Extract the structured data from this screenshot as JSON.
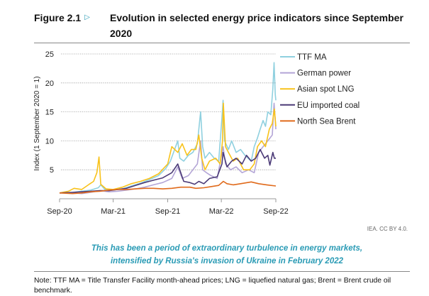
{
  "figure": {
    "label": "Figure 2.1",
    "icon": "triangle-right-icon",
    "title": "Evolution in selected energy price indicators since September 2020",
    "source": "IEA. CC BY 4.0.",
    "caption_line1": "This has been a period of extraordinary turbulence in energy markets,",
    "caption_line2": "intensified by Russia's invasion of Ukraine in February 2022",
    "note": "Note:  TTF MA = Title Transfer Facility month-ahead prices; LNG = liquefied natural gas; Brent = Brent crude oil benchmark.",
    "accent_color": "#2a9bb5"
  },
  "chart_data": {
    "type": "line",
    "title": "Evolution in selected energy price indicators since September 2020",
    "ylabel": "Index (1 September 2020 = 1)",
    "xlabel": "",
    "ylim": [
      0,
      25
    ],
    "yticks": [
      5,
      10,
      15,
      20,
      25
    ],
    "xlim": [
      "2020-09-01",
      "2022-09-01"
    ],
    "xticks": [
      {
        "date": "2020-09-01",
        "label": "Sep-20"
      },
      {
        "date": "2021-03-01",
        "label": "Mar-21"
      },
      {
        "date": "2021-09-01",
        "label": "Sep-21"
      },
      {
        "date": "2022-03-01",
        "label": "Mar-22"
      },
      {
        "date": "2022-09-01",
        "label": "Sep-22"
      }
    ],
    "grid": "horizontal dotted",
    "legend_position": "right",
    "series": [
      {
        "name": "TTF MA",
        "color": "#8fd0df",
        "points": [
          [
            "2020-09-01",
            1
          ],
          [
            "2020-10-15",
            1.1
          ],
          [
            "2020-11-15",
            1.3
          ],
          [
            "2020-12-15",
            1.5
          ],
          [
            "2021-01-10",
            1.9
          ],
          [
            "2021-01-18",
            2.4
          ],
          [
            "2021-02-01",
            1.6
          ],
          [
            "2021-03-01",
            1.5
          ],
          [
            "2021-04-01",
            1.7
          ],
          [
            "2021-05-01",
            2.2
          ],
          [
            "2021-06-01",
            2.7
          ],
          [
            "2021-07-01",
            3.3
          ],
          [
            "2021-08-01",
            4
          ],
          [
            "2021-08-25",
            5.2
          ],
          [
            "2021-09-10",
            6.5
          ],
          [
            "2021-10-05",
            10
          ],
          [
            "2021-10-12",
            7
          ],
          [
            "2021-10-25",
            6.5
          ],
          [
            "2021-11-10",
            7.5
          ],
          [
            "2021-11-25",
            8
          ],
          [
            "2021-12-10",
            9.5
          ],
          [
            "2021-12-21",
            15
          ],
          [
            "2021-12-28",
            9
          ],
          [
            "2022-01-05",
            7
          ],
          [
            "2022-01-20",
            8
          ],
          [
            "2022-02-05",
            7
          ],
          [
            "2022-02-20",
            6.5
          ],
          [
            "2022-03-03",
            14
          ],
          [
            "2022-03-07",
            17
          ],
          [
            "2022-03-12",
            10
          ],
          [
            "2022-03-25",
            8.5
          ],
          [
            "2022-04-05",
            10
          ],
          [
            "2022-04-20",
            8
          ],
          [
            "2022-05-05",
            8.5
          ],
          [
            "2022-05-20",
            7.5
          ],
          [
            "2022-06-10",
            6.5
          ],
          [
            "2022-06-20",
            9
          ],
          [
            "2022-07-01",
            10.5
          ],
          [
            "2022-07-10",
            12
          ],
          [
            "2022-07-20",
            13.5
          ],
          [
            "2022-07-28",
            12.5
          ],
          [
            "2022-08-05",
            15
          ],
          [
            "2022-08-15",
            14.5
          ],
          [
            "2022-08-22",
            19
          ],
          [
            "2022-08-26",
            23.5
          ],
          [
            "2022-08-30",
            18
          ],
          [
            "2022-09-01",
            17
          ]
        ]
      },
      {
        "name": "German power",
        "color": "#b3a5d6",
        "points": [
          [
            "2020-09-01",
            1
          ],
          [
            "2020-10-15",
            1
          ],
          [
            "2020-11-15",
            0.9
          ],
          [
            "2020-12-15",
            1.1
          ],
          [
            "2021-01-15",
            1.4
          ],
          [
            "2021-02-15",
            1.2
          ],
          [
            "2021-03-15",
            1.3
          ],
          [
            "2021-04-15",
            1.5
          ],
          [
            "2021-05-15",
            1.7
          ],
          [
            "2021-06-15",
            2
          ],
          [
            "2021-07-15",
            2.4
          ],
          [
            "2021-08-15",
            2.8
          ],
          [
            "2021-09-15",
            3.5
          ],
          [
            "2021-10-05",
            5.5
          ],
          [
            "2021-10-20",
            3.5
          ],
          [
            "2021-11-10",
            4
          ],
          [
            "2021-11-25",
            5
          ],
          [
            "2021-12-10",
            6
          ],
          [
            "2021-12-21",
            10
          ],
          [
            "2021-12-28",
            5
          ],
          [
            "2022-01-10",
            4.5
          ],
          [
            "2022-01-25",
            4
          ],
          [
            "2022-02-15",
            3.5
          ],
          [
            "2022-03-07",
            9
          ],
          [
            "2022-03-15",
            6
          ],
          [
            "2022-04-01",
            5
          ],
          [
            "2022-04-20",
            5.5
          ],
          [
            "2022-05-10",
            4.5
          ],
          [
            "2022-06-01",
            5
          ],
          [
            "2022-06-20",
            4.5
          ],
          [
            "2022-07-05",
            8
          ],
          [
            "2022-07-20",
            9
          ],
          [
            "2022-08-05",
            10
          ],
          [
            "2022-08-20",
            11
          ],
          [
            "2022-08-26",
            16.5
          ],
          [
            "2022-09-01",
            12
          ]
        ]
      },
      {
        "name": "Asian spot LNG",
        "color": "#f8c21a",
        "points": [
          [
            "2020-09-01",
            1
          ],
          [
            "2020-10-01",
            1.3
          ],
          [
            "2020-10-20",
            1.8
          ],
          [
            "2020-11-15",
            1.6
          ],
          [
            "2020-12-10",
            2.5
          ],
          [
            "2020-12-25",
            3
          ],
          [
            "2021-01-05",
            4.5
          ],
          [
            "2021-01-12",
            7.2
          ],
          [
            "2021-01-18",
            2.5
          ],
          [
            "2021-02-05",
            1.7
          ],
          [
            "2021-03-01",
            1.6
          ],
          [
            "2021-04-01",
            2
          ],
          [
            "2021-05-01",
            2.6
          ],
          [
            "2021-06-01",
            3
          ],
          [
            "2021-07-01",
            3.5
          ],
          [
            "2021-08-01",
            4.3
          ],
          [
            "2021-09-01",
            6
          ],
          [
            "2021-09-15",
            9
          ],
          [
            "2021-10-05",
            8
          ],
          [
            "2021-10-20",
            9.5
          ],
          [
            "2021-11-05",
            7.5
          ],
          [
            "2021-11-20",
            8.5
          ],
          [
            "2021-12-05",
            8.5
          ],
          [
            "2021-12-15",
            11
          ],
          [
            "2021-12-25",
            7
          ],
          [
            "2022-01-05",
            5
          ],
          [
            "2022-01-20",
            6.5
          ],
          [
            "2022-02-10",
            7
          ],
          [
            "2022-02-25",
            6
          ],
          [
            "2022-03-05",
            10
          ],
          [
            "2022-03-08",
            16.5
          ],
          [
            "2022-03-15",
            9
          ],
          [
            "2022-03-25",
            8
          ],
          [
            "2022-04-10",
            6.5
          ],
          [
            "2022-04-25",
            7
          ],
          [
            "2022-05-15",
            5
          ],
          [
            "2022-06-05",
            5
          ],
          [
            "2022-06-20",
            6
          ],
          [
            "2022-07-01",
            9
          ],
          [
            "2022-07-15",
            10
          ],
          [
            "2022-07-28",
            9
          ],
          [
            "2022-08-10",
            12
          ],
          [
            "2022-08-20",
            13
          ],
          [
            "2022-08-27",
            15.5
          ],
          [
            "2022-09-01",
            12.5
          ]
        ]
      },
      {
        "name": "EU imported coal",
        "color": "#4b3a77",
        "points": [
          [
            "2020-09-01",
            1
          ],
          [
            "2020-10-15",
            1.1
          ],
          [
            "2020-11-15",
            1.2
          ],
          [
            "2020-12-15",
            1.3
          ],
          [
            "2021-01-15",
            1.4
          ],
          [
            "2021-02-15",
            1.4
          ],
          [
            "2021-03-15",
            1.6
          ],
          [
            "2021-04-15",
            1.8
          ],
          [
            "2021-05-15",
            2.3
          ],
          [
            "2021-06-15",
            2.8
          ],
          [
            "2021-07-15",
            3.2
          ],
          [
            "2021-08-15",
            3.6
          ],
          [
            "2021-09-15",
            4.5
          ],
          [
            "2021-10-05",
            6
          ],
          [
            "2021-10-15",
            4.5
          ],
          [
            "2021-10-25",
            3
          ],
          [
            "2021-11-15",
            2.8
          ],
          [
            "2021-12-01",
            2.5
          ],
          [
            "2021-12-15",
            3
          ],
          [
            "2022-01-01",
            2.6
          ],
          [
            "2022-01-20",
            3.5
          ],
          [
            "2022-02-15",
            3.8
          ],
          [
            "2022-03-03",
            6
          ],
          [
            "2022-03-07",
            8
          ],
          [
            "2022-03-20",
            5.5
          ],
          [
            "2022-04-05",
            6.5
          ],
          [
            "2022-04-20",
            7
          ],
          [
            "2022-05-10",
            6
          ],
          [
            "2022-05-25",
            7.5
          ],
          [
            "2022-06-10",
            6.5
          ],
          [
            "2022-06-25",
            7
          ],
          [
            "2022-07-10",
            8.5
          ],
          [
            "2022-07-25",
            7
          ],
          [
            "2022-08-05",
            7.5
          ],
          [
            "2022-08-12",
            5.8
          ],
          [
            "2022-08-22",
            8
          ],
          [
            "2022-08-27",
            7
          ],
          [
            "2022-09-01",
            7
          ]
        ]
      },
      {
        "name": "North Sea Brent",
        "color": "#e06a1b",
        "points": [
          [
            "2020-09-01",
            1
          ],
          [
            "2020-10-15",
            0.9
          ],
          [
            "2020-11-15",
            1
          ],
          [
            "2020-12-15",
            1.2
          ],
          [
            "2021-01-15",
            1.3
          ],
          [
            "2021-02-15",
            1.5
          ],
          [
            "2021-03-15",
            1.6
          ],
          [
            "2021-04-15",
            1.6
          ],
          [
            "2021-05-15",
            1.7
          ],
          [
            "2021-06-15",
            1.8
          ],
          [
            "2021-07-15",
            1.8
          ],
          [
            "2021-08-15",
            1.7
          ],
          [
            "2021-09-15",
            1.8
          ],
          [
            "2021-10-15",
            2.0
          ],
          [
            "2021-11-15",
            2.0
          ],
          [
            "2021-12-05",
            1.8
          ],
          [
            "2022-01-01",
            1.9
          ],
          [
            "2022-01-25",
            2.1
          ],
          [
            "2022-02-20",
            2.3
          ],
          [
            "2022-03-08",
            3.0
          ],
          [
            "2022-03-20",
            2.6
          ],
          [
            "2022-04-10",
            2.4
          ],
          [
            "2022-05-05",
            2.6
          ],
          [
            "2022-06-10",
            2.9
          ],
          [
            "2022-07-05",
            2.6
          ],
          [
            "2022-08-01",
            2.4
          ],
          [
            "2022-09-01",
            2.2
          ]
        ]
      }
    ]
  }
}
